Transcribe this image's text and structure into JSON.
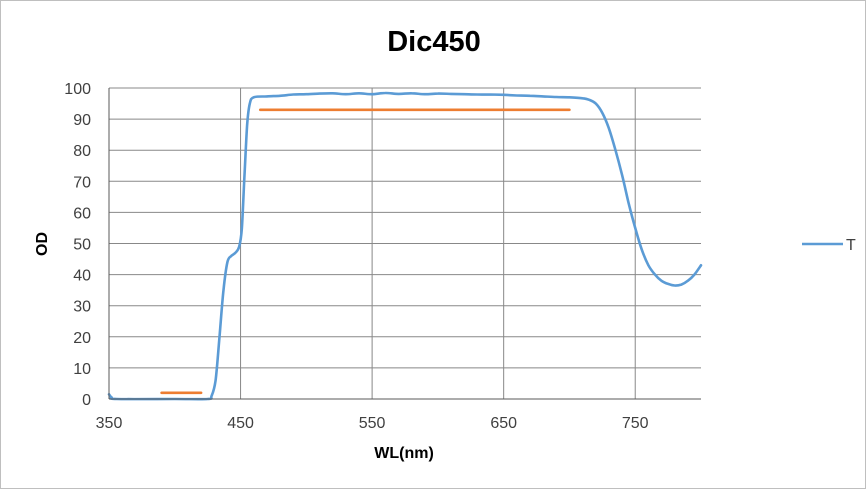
{
  "chart_data": {
    "type": "line",
    "title": "Dic450",
    "xlabel": "WL(nm)",
    "ylabel": "OD",
    "xlim": [
      350,
      800
    ],
    "ylim": [
      0,
      100
    ],
    "x_ticks": [
      350,
      450,
      550,
      650,
      750
    ],
    "y_ticks": [
      0,
      10,
      20,
      30,
      40,
      50,
      60,
      70,
      80,
      90,
      100
    ],
    "grid": true,
    "legend_position": "right",
    "series": [
      {
        "name": "T",
        "color": "#5b9bd5",
        "points": [
          [
            350,
            1.5
          ],
          [
            352,
            0.5
          ],
          [
            356,
            0
          ],
          [
            400,
            0
          ],
          [
            425,
            0
          ],
          [
            428,
            1
          ],
          [
            431,
            6
          ],
          [
            434,
            20
          ],
          [
            437,
            35
          ],
          [
            440,
            44
          ],
          [
            443,
            46
          ],
          [
            446,
            47
          ],
          [
            449,
            49
          ],
          [
            451,
            55
          ],
          [
            453,
            72
          ],
          [
            455,
            88
          ],
          [
            457,
            95
          ],
          [
            460,
            97
          ],
          [
            470,
            97.3
          ],
          [
            480,
            97.5
          ],
          [
            490,
            97.9
          ],
          [
            500,
            98
          ],
          [
            510,
            98.2
          ],
          [
            520,
            98.3
          ],
          [
            530,
            98
          ],
          [
            540,
            98.3
          ],
          [
            550,
            98
          ],
          [
            560,
            98.4
          ],
          [
            570,
            98.1
          ],
          [
            580,
            98.3
          ],
          [
            590,
            98
          ],
          [
            600,
            98.2
          ],
          [
            610,
            98.1
          ],
          [
            620,
            98
          ],
          [
            630,
            97.9
          ],
          [
            640,
            97.9
          ],
          [
            650,
            97.8
          ],
          [
            660,
            97.6
          ],
          [
            670,
            97.5
          ],
          [
            680,
            97.3
          ],
          [
            690,
            97.1
          ],
          [
            700,
            97
          ],
          [
            710,
            96.7
          ],
          [
            715,
            96.2
          ],
          [
            720,
            95
          ],
          [
            725,
            92
          ],
          [
            730,
            87
          ],
          [
            735,
            80
          ],
          [
            740,
            72
          ],
          [
            745,
            63
          ],
          [
            750,
            55
          ],
          [
            755,
            48
          ],
          [
            760,
            43
          ],
          [
            765,
            40
          ],
          [
            770,
            38
          ],
          [
            775,
            37
          ],
          [
            780,
            36.5
          ],
          [
            785,
            36.8
          ],
          [
            790,
            38
          ],
          [
            795,
            40
          ],
          [
            800,
            43
          ]
        ]
      },
      {
        "name": "",
        "color": "#ed7d31",
        "points": [
          [
            390,
            2
          ],
          [
            420,
            2
          ]
        ]
      },
      {
        "name": "",
        "color": "#ed7d31",
        "points": [
          [
            465,
            93
          ],
          [
            700,
            93
          ]
        ]
      }
    ]
  }
}
